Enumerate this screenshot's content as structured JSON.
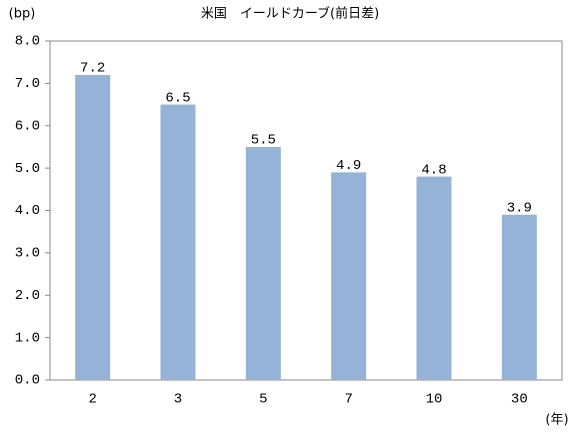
{
  "chart_data": {
    "type": "bar",
    "title": "米国　イールドカーブ(前日差)",
    "y_label": "(bp)",
    "x_label": "(年)",
    "categories": [
      "2",
      "3",
      "5",
      "7",
      "10",
      "30"
    ],
    "values": [
      7.2,
      6.5,
      5.5,
      4.9,
      4.8,
      3.9
    ],
    "color": "#95b3d7",
    "ylim": [
      0,
      8
    ],
    "yticks": [
      {
        "value": 0,
        "label": "0.0"
      },
      {
        "value": 1,
        "label": "1.0"
      },
      {
        "value": 2,
        "label": "2.0"
      },
      {
        "value": 3,
        "label": "3.0"
      },
      {
        "value": 4,
        "label": "4.0"
      },
      {
        "value": 5,
        "label": "5.0"
      },
      {
        "value": 6,
        "label": "6.0"
      },
      {
        "value": 7,
        "label": "7.0"
      },
      {
        "value": 8,
        "label": "8.0"
      }
    ],
    "grid": false
  }
}
